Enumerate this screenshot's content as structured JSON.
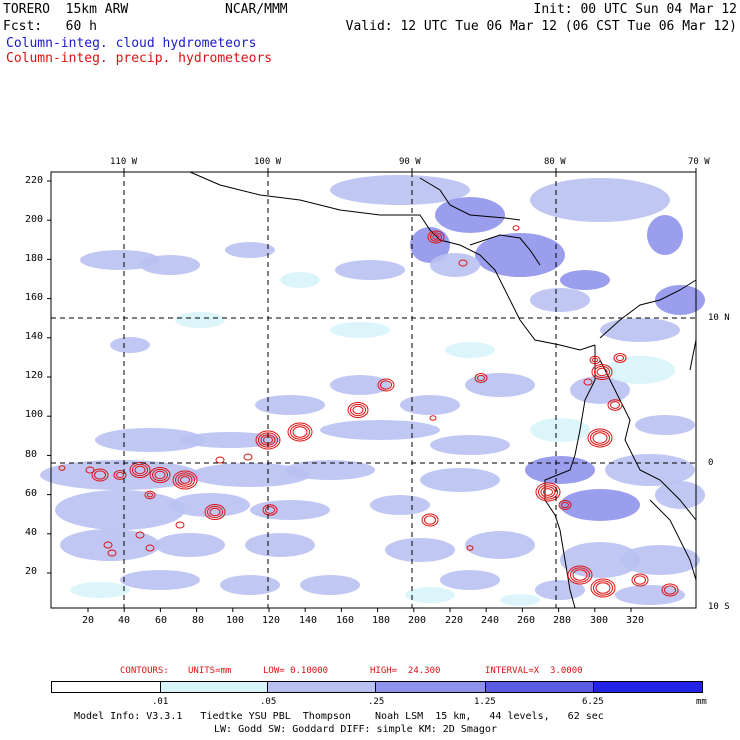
{
  "header": {
    "line1_left": "TORERO  15km ARW",
    "line1_center": "NCAR/MMM",
    "line1_right": "Init: 00 UTC Sun 04 Mar 12",
    "line2_left": "Fcst:   60 h",
    "line2_right": "Valid: 12 UTC Tue 06 Mar 12 (06 CST Tue 06 Mar 12)",
    "legend_cloud": "Column-integ. cloud hydrometeors",
    "legend_precip": "Column-integ. precip. hydrometeors",
    "cloud_color": "#1a1acc",
    "precip_color": "#dd1111"
  },
  "map": {
    "lon_labels": [
      "110 W",
      "100 W",
      "90 W",
      "80 W",
      "70 W"
    ],
    "lat_labels": [
      "10 N",
      "0",
      "10 S"
    ],
    "y_ticks": [
      "220",
      "200",
      "180",
      "160",
      "140",
      "120",
      "100",
      "80",
      "60",
      "40",
      "20"
    ],
    "x_ticks": [
      "20",
      "40",
      "60",
      "80",
      "100",
      "120",
      "140",
      "160",
      "180",
      "200",
      "220",
      "240",
      "260",
      "280",
      "300",
      "320"
    ]
  },
  "contours": {
    "label": "CONTOURS:",
    "units": "UNITS=mm",
    "low": "LOW= 0.10000",
    "high": "HIGH=  24.300",
    "interval": "INTERVAL=X  3.0000"
  },
  "colorbar": {
    "ticks": [
      ".01",
      ".05",
      ".25",
      "1.25",
      "6.25"
    ],
    "unit": "mm",
    "colors": [
      "#ffffff",
      "#d8f4fb",
      "#b9c1f2",
      "#8f93ea",
      "#5b5be3",
      "#2323e6"
    ]
  },
  "footer": {
    "line1": "Model Info: V3.3.1   Tiedtke YSU PBL  Thompson    Noah LSM  15 km,   44 levels,   62 sec",
    "line2": "LW: Godd SW: Goddard DIFF: simple KM: 2D Smagor"
  }
}
